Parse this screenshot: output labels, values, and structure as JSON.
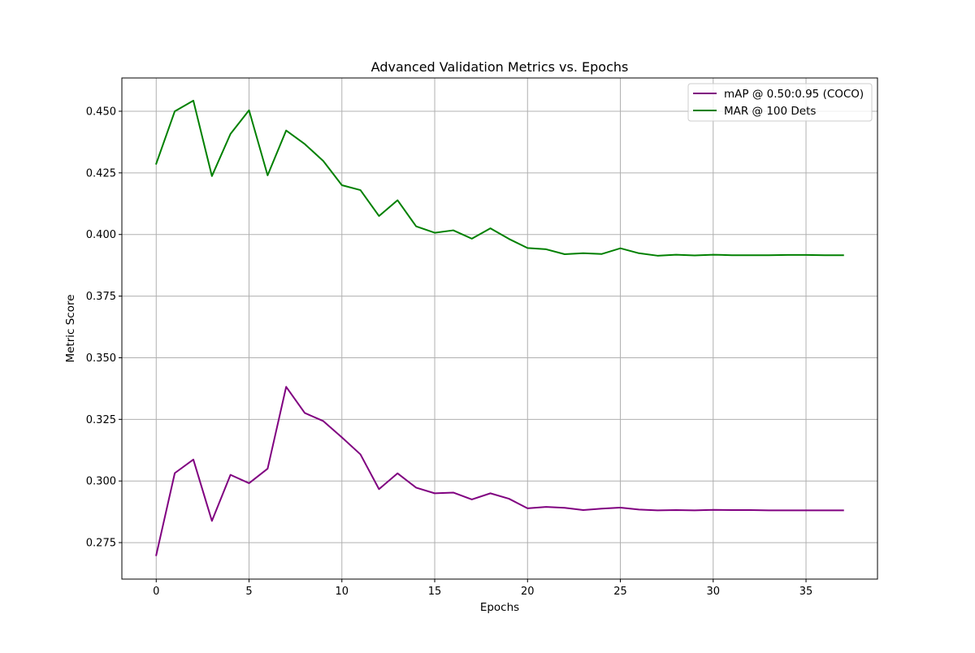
{
  "chart_data": {
    "type": "line",
    "title": "Advanced Validation Metrics vs. Epochs",
    "xlabel": "Epochs",
    "ylabel": "Metric Score",
    "xlim": [
      -1.85,
      38.85
    ],
    "ylim": [
      0.2602,
      0.4635
    ],
    "xticks": [
      0,
      5,
      10,
      15,
      20,
      25,
      30,
      35
    ],
    "yticks": [
      0.275,
      0.3,
      0.325,
      0.35,
      0.375,
      0.4,
      0.425,
      0.45
    ],
    "ytick_labels": [
      "0.275",
      "0.300",
      "0.325",
      "0.350",
      "0.375",
      "0.400",
      "0.425",
      "0.450"
    ],
    "xtick_labels": [
      "0",
      "5",
      "10",
      "15",
      "20",
      "25",
      "30",
      "35"
    ],
    "grid": true,
    "legend_position": "top-right",
    "x": [
      0,
      1,
      2,
      3,
      4,
      5,
      6,
      7,
      8,
      9,
      10,
      11,
      12,
      13,
      14,
      15,
      16,
      17,
      18,
      19,
      20,
      21,
      22,
      23,
      24,
      25,
      26,
      27,
      28,
      29,
      30,
      31,
      32,
      33,
      34,
      35,
      36,
      37
    ],
    "series": [
      {
        "name": "mAP @ 0.50:0.95 (COCO)",
        "color": "#800080",
        "values": [
          0.2699,
          0.3032,
          0.3087,
          0.2838,
          0.3025,
          0.2991,
          0.305,
          0.3382,
          0.3276,
          0.3243,
          0.3177,
          0.3108,
          0.2967,
          0.3031,
          0.2973,
          0.295,
          0.2953,
          0.2925,
          0.295,
          0.2928,
          0.2889,
          0.2895,
          0.2891,
          0.2882,
          0.2888,
          0.2892,
          0.2884,
          0.2881,
          0.2882,
          0.2881,
          0.2883,
          0.2882,
          0.2882,
          0.2881,
          0.2881,
          0.2881,
          0.2881,
          0.2881
        ]
      },
      {
        "name": "MAR @ 100 Dets",
        "color": "#008000",
        "values": [
          0.4287,
          0.45,
          0.4543,
          0.4237,
          0.4408,
          0.4504,
          0.424,
          0.4422,
          0.4367,
          0.4298,
          0.42,
          0.418,
          0.4075,
          0.4139,
          0.4033,
          0.4007,
          0.4017,
          0.3983,
          0.4025,
          0.3982,
          0.3945,
          0.394,
          0.392,
          0.3924,
          0.3921,
          0.3944,
          0.3924,
          0.3914,
          0.3918,
          0.3915,
          0.3918,
          0.3916,
          0.3916,
          0.3916,
          0.3917,
          0.3917,
          0.3916,
          0.3916
        ]
      }
    ]
  }
}
